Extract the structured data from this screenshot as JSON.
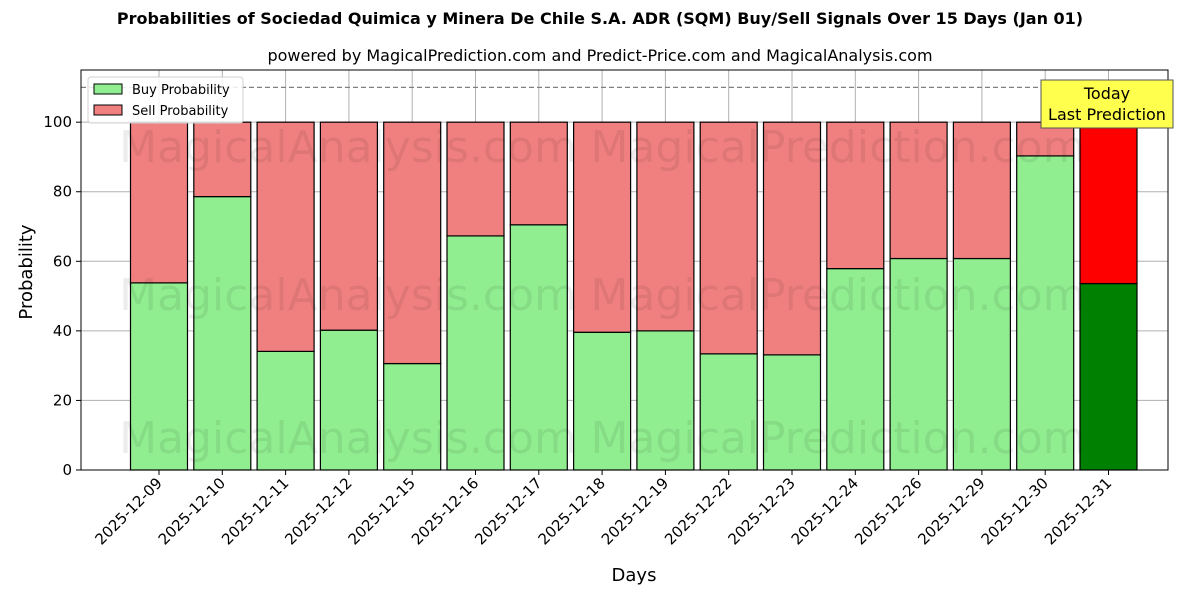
{
  "title": "Probabilities of Sociedad Quimica y Minera De Chile S.A. ADR (SQM) Buy/Sell Signals Over 15 Days (Jan 01)",
  "subtitle": "powered by MagicalPrediction.com and Predict-Price.com and MagicalAnalysis.com",
  "watermarks": [
    "MagicalAnalysis.com",
    "MagicalPrediction.com"
  ],
  "annotation": {
    "line1": "Today",
    "line2": "Last Prediction",
    "bg_color": "#ffff4d"
  },
  "legend": [
    {
      "label": "Buy Probability",
      "color": "#90ee90"
    },
    {
      "label": "Sell Probability",
      "color": "#f08080"
    }
  ],
  "colors": {
    "buy": "#90ee90",
    "sell": "#f08080",
    "today_buy": "#008000",
    "today_sell": "#ff0000",
    "grid": "#b0b0b0",
    "threshold_line": "#808080"
  },
  "chart_data": {
    "type": "bar",
    "stacked": true,
    "title": "Probabilities of Sociedad Quimica y Minera De Chile S.A. ADR (SQM) Buy/Sell Signals Over 15 Days (Jan 01)",
    "subtitle": "powered by MagicalPrediction.com and Predict-Price.com and MagicalAnalysis.com",
    "xlabel": "Days",
    "ylabel": "Probability",
    "ylim": [
      0,
      115
    ],
    "yticks": [
      0,
      20,
      40,
      60,
      80,
      100
    ],
    "threshold_line": 110,
    "grid": true,
    "legend_position": "upper left",
    "categories": [
      "2025-12-09",
      "2025-12-10",
      "2025-12-11",
      "2025-12-12",
      "2025-12-15",
      "2025-12-16",
      "2025-12-17",
      "2025-12-18",
      "2025-12-19",
      "2025-12-22",
      "2025-12-23",
      "2025-12-24",
      "2025-12-26",
      "2025-12-29",
      "2025-12-30",
      "2025-12-31"
    ],
    "series": [
      {
        "name": "Buy Probability",
        "values": [
          53.8,
          78.6,
          34.1,
          40.2,
          30.6,
          67.3,
          70.5,
          39.6,
          40.0,
          33.4,
          33.1,
          57.9,
          60.8,
          60.8,
          90.3,
          53.6
        ]
      },
      {
        "name": "Sell Probability",
        "values": [
          46.2,
          21.4,
          65.9,
          59.8,
          69.4,
          32.7,
          29.5,
          60.4,
          60.0,
          66.6,
          66.9,
          42.1,
          39.2,
          39.2,
          9.7,
          46.4
        ]
      }
    ],
    "highlight_last": {
      "label": "Today Last Prediction",
      "buy_color": "#008000",
      "sell_color": "#ff0000"
    }
  }
}
